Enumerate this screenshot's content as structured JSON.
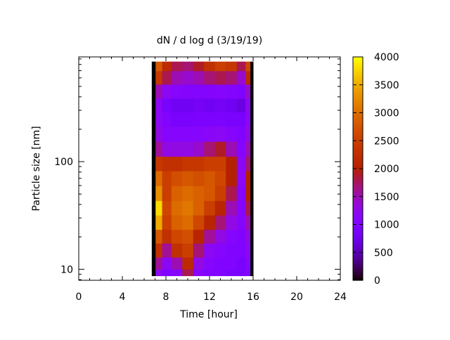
{
  "chart_data": {
    "type": "heatmap",
    "title": "dN / d log d (3/19/19)",
    "xlabel": "Time [hour]",
    "ylabel": "Particle size [nm]",
    "xlim": [
      0,
      24
    ],
    "ylim": [
      7.9,
      940
    ],
    "yscale": "log",
    "x_ticks": [
      "0",
      "4",
      "8",
      "12",
      "16",
      "20",
      "24"
    ],
    "y_ticks": [
      "10",
      "100"
    ],
    "colorbar": {
      "range": [
        0,
        4000
      ],
      "ticks": [
        "0",
        "500",
        "1000",
        "1500",
        "2000",
        "2500",
        "3000",
        "3500",
        "4000"
      ],
      "palette": "black-blue-purple-red-orange-yellow"
    },
    "grid": false,
    "time_hours": [
      6.8,
      7.3,
      8,
      9,
      10,
      11,
      12,
      13,
      14,
      15,
      15.6,
      15.9
    ],
    "size_nm": [
      800,
      600,
      450,
      330,
      250,
      180,
      130,
      95,
      70,
      50,
      37,
      27,
      20,
      15,
      11,
      9
    ],
    "values": [
      [
        0,
        2800,
        2200,
        1800,
        1700,
        1900,
        2300,
        2500,
        2400,
        1800,
        2600,
        0
      ],
      [
        0,
        2400,
        1800,
        1500,
        1400,
        1500,
        1700,
        1800,
        1700,
        1400,
        2200,
        0
      ],
      [
        0,
        1500,
        1200,
        1100,
        1050,
        1050,
        1050,
        1100,
        1050,
        1000,
        1400,
        0
      ],
      [
        0,
        1200,
        900,
        800,
        800,
        850,
        800,
        850,
        800,
        700,
        1200,
        0
      ],
      [
        0,
        1200,
        1000,
        900,
        900,
        950,
        950,
        950,
        900,
        900,
        1200,
        0
      ],
      [
        0,
        1300,
        1100,
        1100,
        1100,
        1100,
        1150,
        1200,
        1100,
        1000,
        1300,
        0
      ],
      [
        0,
        1600,
        1300,
        1300,
        1300,
        1400,
        1700,
        1900,
        1500,
        1100,
        1500,
        0
      ],
      [
        0,
        2400,
        2300,
        2300,
        2400,
        2400,
        2500,
        2500,
        2000,
        1200,
        1700,
        0
      ],
      [
        0,
        3000,
        2500,
        2700,
        2800,
        2700,
        2800,
        2600,
        2000,
        1200,
        2000,
        0
      ],
      [
        0,
        3300,
        2500,
        2900,
        3000,
        2900,
        2800,
        2500,
        1800,
        1100,
        2000,
        0
      ],
      [
        0,
        3800,
        2600,
        3000,
        3100,
        2900,
        2500,
        2100,
        1500,
        1100,
        1800,
        0
      ],
      [
        0,
        3500,
        2500,
        2900,
        3000,
        2600,
        2100,
        1700,
        1300,
        1100,
        1500,
        0
      ],
      [
        0,
        2800,
        2300,
        2600,
        2700,
        2100,
        1600,
        1300,
        1100,
        1000,
        1300,
        0
      ],
      [
        0,
        2300,
        1600,
        2300,
        2500,
        1700,
        1200,
        1100,
        1000,
        1000,
        1200,
        0
      ],
      [
        0,
        1600,
        1200,
        1500,
        2200,
        1300,
        1100,
        1000,
        1000,
        900,
        1100,
        0
      ],
      [
        0,
        1200,
        1000,
        1100,
        1800,
        1100,
        1000,
        1000,
        900,
        900,
        1000,
        0
      ]
    ]
  }
}
